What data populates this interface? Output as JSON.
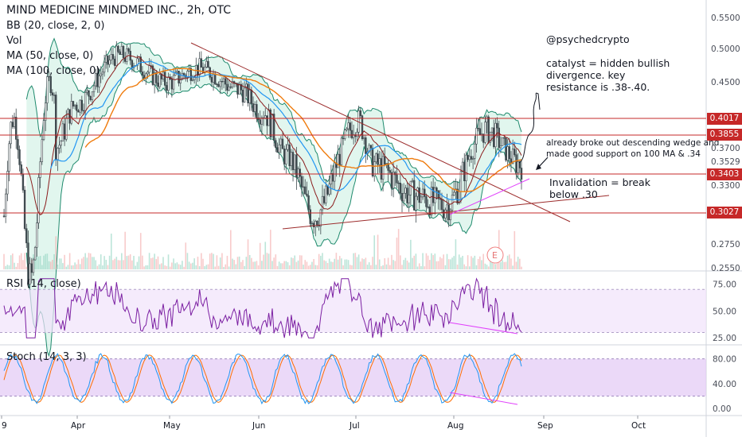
{
  "header": {
    "title": "MIND MEDICINE MINDMED INC., 2h, OTC",
    "indicators": [
      "BB (20, close, 2, 0)",
      "Vol",
      "MA (50, close, 0)",
      "MA (100, close, 0)"
    ]
  },
  "panes": {
    "rsi_label": "RSI (14, close)",
    "stoch_label": "Stoch (14, 3, 3)"
  },
  "annotations": {
    "author": "@psychedcrypto",
    "catalyst": "catalyst = hidden bullish\ndivergence. key\nresistance is .38-.40.",
    "breakout": "already broke out descending wedge and\nmade good support on 100 MA & .34",
    "invalidation": "Invalidation = break\nbelow .30",
    "earnings_marker": "E"
  },
  "colors": {
    "candles": "#3f4a4f",
    "bb_fill": "#c9eee0",
    "bb_band": "#1f8a6d",
    "bb_basis": "#8b1c1c",
    "ma50": "#2196f3",
    "ma100": "#ef7c0e",
    "level_line": "#c62828",
    "trend_line": "#9c2b2b",
    "divergence": "#e040fb",
    "rsi_line": "#7b1fa2",
    "rsi_band": "#f1e2fb",
    "stoch_band": "#e3c9f5",
    "stoch_k": "#2196f3",
    "stoch_d": "#ff6d00"
  },
  "chart_data": [
    {
      "type": "candlestick",
      "title": "MIND MEDICINE MINDMED INC., 2h, OTC",
      "y_axis_ticks": [
        0.255,
        0.275,
        0.3027,
        0.33,
        0.3403,
        0.3529,
        0.37,
        0.3855,
        0.4017,
        0.45,
        0.5,
        0.55
      ],
      "y_axis_tick_labels": [
        "0.2550",
        "0.2750",
        "0.3027",
        "0.3300",
        "0.3403",
        "0.3529",
        "0.3700",
        "0.3855",
        "0.4017",
        "0.4500",
        "0.5000",
        "0.5500"
      ],
      "ylim": [
        0.25,
        0.57
      ],
      "x_axis_labels": [
        "9",
        "Apr",
        "May",
        "Jun",
        "Jul",
        "Aug",
        "Sep",
        "Oct"
      ],
      "horizontal_levels": [
        0.4017,
        0.3855,
        0.3403,
        0.3027
      ],
      "price_tags": [
        "0.4017",
        "0.3855",
        "0.3529",
        "0.3403",
        "0.3027"
      ],
      "approx_close_path": [
        {
          "t": "Mar-end",
          "close": 0.37
        },
        {
          "t": "Apr-early",
          "close": 0.42
        },
        {
          "t": "Apr-mid",
          "close": 0.49
        },
        {
          "t": "May-early",
          "close": 0.45
        },
        {
          "t": "May-mid",
          "close": 0.47
        },
        {
          "t": "May-end",
          "close": 0.44
        },
        {
          "t": "Jun-early",
          "close": 0.41
        },
        {
          "t": "Jun-mid",
          "close": 0.36
        },
        {
          "t": "Jun-end",
          "close": 0.3
        },
        {
          "t": "Jul-early",
          "close": 0.4
        },
        {
          "t": "Jul-mid",
          "close": 0.35
        },
        {
          "t": "Jul-end",
          "close": 0.32
        },
        {
          "t": "Aug-early",
          "close": 0.31
        },
        {
          "t": "Aug-mid",
          "close": 0.39
        },
        {
          "t": "Aug-late",
          "close": 0.35
        }
      ],
      "series": [
        {
          "name": "BB (20, close, 2, 0)"
        },
        {
          "name": "MA (50, close, 0)"
        },
        {
          "name": "MA (100, close, 0)"
        },
        {
          "name": "Vol"
        }
      ]
    },
    {
      "type": "line",
      "title": "RSI (14, close)",
      "y_axis_ticks": [
        25,
        50,
        75
      ],
      "y_axis_tick_labels": [
        "25.00",
        "50.00",
        "75.00"
      ],
      "band": [
        30,
        70
      ],
      "ylim": [
        20,
        85
      ]
    },
    {
      "type": "line",
      "title": "Stoch (14, 3, 3)",
      "y_axis_ticks": [
        0,
        40,
        80
      ],
      "y_axis_tick_labels": [
        "0.00",
        "40.00",
        "80.00"
      ],
      "band": [
        20,
        80
      ],
      "ylim": [
        -10,
        100
      ]
    }
  ]
}
